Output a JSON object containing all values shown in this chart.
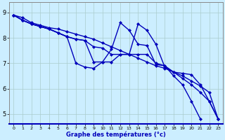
{
  "xlabel": "Graphe des températures (°c)",
  "xlim": [
    -0.5,
    23.5
  ],
  "ylim": [
    4.6,
    9.4
  ],
  "yticks": [
    5,
    6,
    7,
    8,
    9
  ],
  "xticks": [
    0,
    1,
    2,
    3,
    4,
    5,
    6,
    7,
    8,
    9,
    10,
    11,
    12,
    13,
    14,
    15,
    16,
    17,
    18,
    19,
    20,
    21,
    22,
    23
  ],
  "xtick_labels": [
    "0",
    "1",
    "2",
    "3",
    "4",
    "5",
    "6",
    "7",
    "8",
    "9",
    "10",
    "11",
    "12",
    "13",
    "14",
    "15",
    "16",
    "17",
    "18",
    "19",
    "20",
    "21",
    "22",
    "23"
  ],
  "bg_color": "#cceeff",
  "grid_color": "#aacccc",
  "line_color": "#0000bb",
  "line_width": 1.0,
  "marker": "D",
  "marker_size": 2.0,
  "series": [
    {
      "x": [
        0,
        1,
        2,
        3,
        4,
        5,
        6,
        7,
        8,
        9,
        10,
        11,
        12,
        13,
        14,
        15,
        16,
        17,
        18,
        19,
        20,
        21,
        22,
        23
      ],
      "y": [
        8.9,
        8.8,
        8.6,
        8.5,
        8.4,
        8.35,
        8.25,
        8.15,
        8.05,
        7.95,
        7.8,
        7.65,
        7.5,
        7.35,
        7.2,
        7.05,
        6.9,
        6.8,
        6.65,
        6.5,
        6.3,
        6.1,
        5.85,
        4.8
      ]
    },
    {
      "x": [
        0,
        1,
        2,
        3,
        4,
        5,
        6,
        7,
        8,
        9,
        10,
        11,
        12,
        13,
        14,
        15,
        16,
        17,
        18,
        19,
        20,
        21
      ],
      "y": [
        8.9,
        8.7,
        8.55,
        8.45,
        8.35,
        8.2,
        8.05,
        7.0,
        6.85,
        6.8,
        7.05,
        7.55,
        8.6,
        8.3,
        7.75,
        7.7,
        6.95,
        6.9,
        6.5,
        6.15,
        5.5,
        4.8
      ]
    },
    {
      "x": [
        0,
        1,
        2,
        3,
        4,
        5,
        6,
        7,
        8,
        9,
        10,
        11,
        12,
        13,
        14,
        15,
        16,
        17,
        18,
        19,
        20,
        21,
        22,
        23
      ],
      "y": [
        8.9,
        8.7,
        8.55,
        8.45,
        8.35,
        8.2,
        8.05,
        7.95,
        7.9,
        7.65,
        7.6,
        7.35,
        7.35,
        7.35,
        7.35,
        7.35,
        7.0,
        6.9,
        6.65,
        6.4,
        6.15,
        5.85,
        5.5,
        4.8
      ]
    },
    {
      "x": [
        0,
        1,
        2,
        3,
        4,
        5,
        6,
        7,
        8,
        9,
        10,
        11,
        12,
        13,
        14,
        15,
        16,
        17,
        18,
        19,
        20,
        21,
        22,
        23
      ],
      "y": [
        8.9,
        8.7,
        8.55,
        8.45,
        8.35,
        8.2,
        8.05,
        7.95,
        7.9,
        7.05,
        7.05,
        7.05,
        7.35,
        7.35,
        8.55,
        8.3,
        7.75,
        6.85,
        6.65,
        6.6,
        6.55,
        6.15,
        5.5,
        4.8
      ]
    }
  ]
}
